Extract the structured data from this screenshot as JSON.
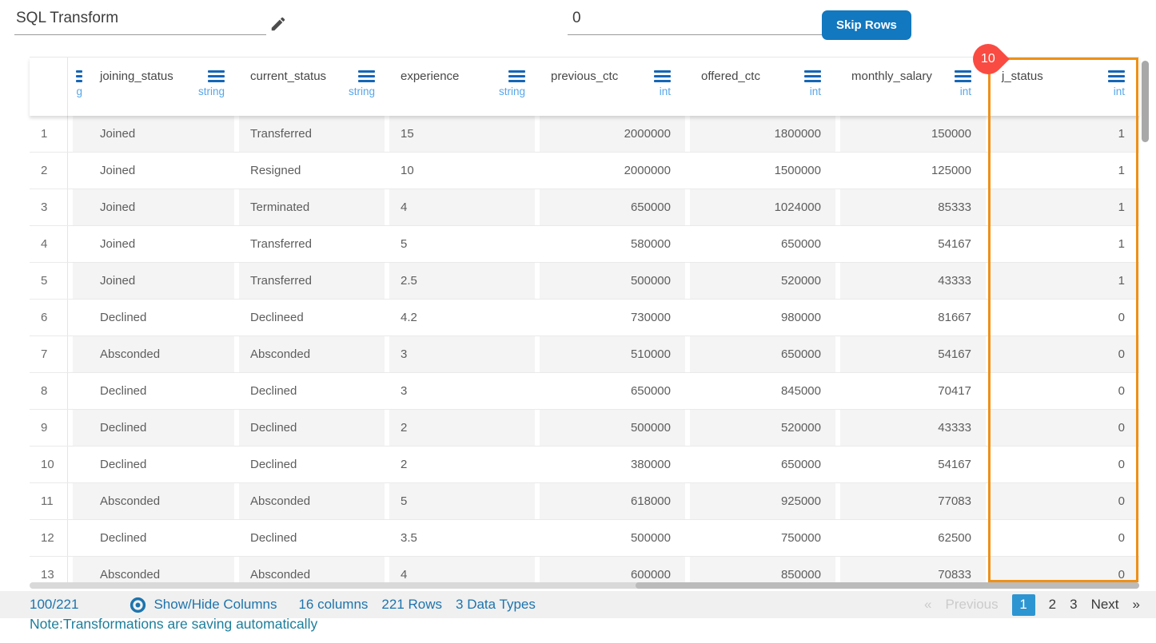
{
  "topbar": {
    "transform_name": "SQL Transform",
    "skip_rows_value": "0",
    "skip_rows_button": "Skip Rows"
  },
  "table": {
    "highlight_badge": "10",
    "partial_column": {
      "type_fragment": "g"
    },
    "columns": [
      {
        "name": "joining_status",
        "type": "string"
      },
      {
        "name": "current_status",
        "type": "string"
      },
      {
        "name": "experience",
        "type": "string"
      },
      {
        "name": "previous_ctc",
        "type": "int"
      },
      {
        "name": "offered_ctc",
        "type": "int"
      },
      {
        "name": "monthly_salary",
        "type": "int"
      },
      {
        "name": "j_status",
        "type": "int",
        "highlighted": true
      }
    ],
    "rows": [
      {
        "index": "1",
        "cells": [
          "Joined",
          "Transferred",
          "15",
          "2000000",
          "1800000",
          "150000",
          "1"
        ]
      },
      {
        "index": "2",
        "cells": [
          "Joined",
          "Resigned",
          "10",
          "2000000",
          "1500000",
          "125000",
          "1"
        ]
      },
      {
        "index": "3",
        "cells": [
          "Joined",
          "Terminated",
          "4",
          "650000",
          "1024000",
          "85333",
          "1"
        ]
      },
      {
        "index": "4",
        "cells": [
          "Joined",
          "Transferred",
          "5",
          "580000",
          "650000",
          "54167",
          "1"
        ]
      },
      {
        "index": "5",
        "cells": [
          "Joined",
          "Transferred",
          "2.5",
          "500000",
          "520000",
          "43333",
          "1"
        ]
      },
      {
        "index": "6",
        "cells": [
          "Declined",
          "Declineed",
          "4.2",
          "730000",
          "980000",
          "81667",
          "0"
        ]
      },
      {
        "index": "7",
        "cells": [
          "Absconded",
          "Absconded",
          "3",
          "510000",
          "650000",
          "54167",
          "0"
        ]
      },
      {
        "index": "8",
        "cells": [
          "Declined",
          "Declined",
          "3",
          "650000",
          "845000",
          "70417",
          "0"
        ]
      },
      {
        "index": "9",
        "cells": [
          "Declined",
          "Declined",
          "2",
          "500000",
          "520000",
          "43333",
          "0"
        ]
      },
      {
        "index": "10",
        "cells": [
          "Declined",
          "Declined",
          "2",
          "380000",
          "650000",
          "54167",
          "0"
        ]
      },
      {
        "index": "11",
        "cells": [
          "Absconded",
          "Absconded",
          "5",
          "618000",
          "925000",
          "77083",
          "0"
        ]
      },
      {
        "index": "12",
        "cells": [
          "Declined",
          "Declined",
          "3.5",
          "500000",
          "750000",
          "62500",
          "0"
        ]
      },
      {
        "index": "13",
        "cells": [
          "Absconded",
          "Absconded",
          "4",
          "600000",
          "850000",
          "70833",
          "0"
        ]
      }
    ]
  },
  "footer": {
    "page_fraction": "100/221",
    "show_hide_columns": "Show/Hide Columns",
    "columns_count": "16 columns",
    "rows_count": "221 Rows",
    "data_types_count": "3 Data Types",
    "pagination": {
      "prev_arrow": "«",
      "previous": "Previous",
      "pages": [
        "1",
        "2",
        "3"
      ],
      "active_page": "1",
      "next": "Next",
      "next_arrow": "»"
    },
    "note": "Note:Transformations are saving automatically"
  },
  "colors": {
    "accent_blue": "#1278bf",
    "link_blue": "#1d74ad",
    "type_label_blue": "#58a6e8",
    "column_menu_blue": "#1566b6",
    "highlight_orange": "#ef9017",
    "badge_red": "#fa4b42",
    "active_page_blue": "#2d95d2",
    "note_teal": "#1d7e9b"
  }
}
